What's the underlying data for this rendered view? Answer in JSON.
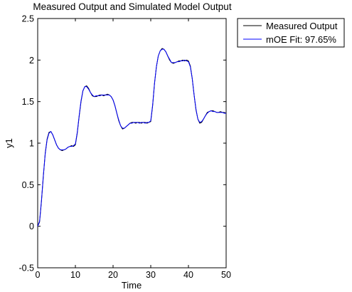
{
  "chart_data": {
    "type": "line",
    "title": "Measured Output and Simulated Model Output",
    "xlabel": "Time",
    "ylabel": "y1",
    "xlim": [
      0,
      50
    ],
    "ylim": [
      -0.5,
      2.5
    ],
    "grid": false,
    "legend_placement": "outside-top-right",
    "x_ticks": [
      "0",
      "10",
      "20",
      "30",
      "40",
      "50"
    ],
    "y_ticks": [
      "-0.5",
      "0",
      "0.5",
      "1",
      "1.5",
      "2",
      "2.5"
    ],
    "series": [
      {
        "name": "Measured Output",
        "color": "#000000",
        "x": [
          0,
          0.5,
          1,
          1.5,
          2,
          2.5,
          3,
          3.5,
          4,
          4.5,
          5,
          5.5,
          6,
          6.5,
          7,
          7.5,
          8,
          8.5,
          9,
          9.5,
          10,
          10.5,
          11,
          11.5,
          12,
          12.5,
          13,
          13.5,
          14,
          14.5,
          15,
          15.5,
          16,
          16.5,
          17,
          17.5,
          18,
          18.5,
          19,
          19.5,
          20,
          20.5,
          21,
          21.5,
          22,
          22.5,
          23,
          23.5,
          24,
          24.5,
          25,
          25.5,
          26,
          26.5,
          27,
          27.5,
          28,
          28.5,
          29,
          29.5,
          30,
          30.5,
          31,
          31.5,
          32,
          32.5,
          33,
          33.5,
          34,
          34.5,
          35,
          35.5,
          36,
          36.5,
          37,
          37.5,
          38,
          38.5,
          39,
          39.5,
          40,
          40.5,
          41,
          41.5,
          42,
          42.5,
          43,
          43.5,
          44,
          44.5,
          45,
          45.5,
          46,
          46.5,
          47,
          47.5,
          48,
          48.5,
          49,
          49.5,
          50
        ],
        "y": [
          0,
          0.05,
          0.3,
          0.6,
          0.88,
          1.05,
          1.13,
          1.14,
          1.1,
          1.04,
          0.98,
          0.94,
          0.92,
          0.91,
          0.92,
          0.93,
          0.95,
          0.96,
          0.97,
          0.96,
          0.98,
          1.12,
          1.32,
          1.5,
          1.63,
          1.68,
          1.69,
          1.66,
          1.61,
          1.57,
          1.56,
          1.56,
          1.57,
          1.58,
          1.58,
          1.57,
          1.58,
          1.59,
          1.58,
          1.56,
          1.52,
          1.45,
          1.36,
          1.27,
          1.21,
          1.17,
          1.18,
          1.2,
          1.22,
          1.24,
          1.25,
          1.25,
          1.24,
          1.25,
          1.25,
          1.24,
          1.25,
          1.25,
          1.24,
          1.25,
          1.26,
          1.45,
          1.72,
          1.92,
          2.05,
          2.11,
          2.14,
          2.13,
          2.1,
          2.05,
          2.0,
          1.97,
          1.96,
          1.97,
          1.98,
          1.99,
          1.99,
          2.0,
          1.99,
          2.0,
          1.99,
          1.93,
          1.78,
          1.58,
          1.4,
          1.29,
          1.24,
          1.25,
          1.29,
          1.33,
          1.37,
          1.38,
          1.39,
          1.39,
          1.38,
          1.37,
          1.37,
          1.38,
          1.37,
          1.37,
          1.36
        ]
      },
      {
        "name": "mOE Fit: 97.65%",
        "color": "#0000ff",
        "x": [
          0,
          0.5,
          1,
          1.5,
          2,
          2.5,
          3,
          3.5,
          4,
          4.5,
          5,
          5.5,
          6,
          6.5,
          7,
          7.5,
          8,
          8.5,
          9,
          9.5,
          10,
          10.5,
          11,
          11.5,
          12,
          12.5,
          13,
          13.5,
          14,
          14.5,
          15,
          15.5,
          16,
          16.5,
          17,
          17.5,
          18,
          18.5,
          19,
          19.5,
          20,
          20.5,
          21,
          21.5,
          22,
          22.5,
          23,
          23.5,
          24,
          24.5,
          25,
          25.5,
          26,
          26.5,
          27,
          27.5,
          28,
          28.5,
          29,
          29.5,
          30,
          30.5,
          31,
          31.5,
          32,
          32.5,
          33,
          33.5,
          34,
          34.5,
          35,
          35.5,
          36,
          36.5,
          37,
          37.5,
          38,
          38.5,
          39,
          39.5,
          40,
          40.5,
          41,
          41.5,
          42,
          42.5,
          43,
          43.5,
          44,
          44.5,
          45,
          45.5,
          46,
          46.5,
          47,
          47.5,
          48,
          48.5,
          49,
          49.5,
          50
        ],
        "y": [
          0,
          0.06,
          0.31,
          0.61,
          0.87,
          1.04,
          1.12,
          1.14,
          1.1,
          1.04,
          0.98,
          0.94,
          0.92,
          0.92,
          0.92,
          0.93,
          0.95,
          0.96,
          0.96,
          0.97,
          0.99,
          1.13,
          1.33,
          1.51,
          1.63,
          1.68,
          1.68,
          1.65,
          1.61,
          1.58,
          1.56,
          1.57,
          1.57,
          1.57,
          1.58,
          1.58,
          1.58,
          1.58,
          1.58,
          1.56,
          1.52,
          1.45,
          1.36,
          1.28,
          1.21,
          1.18,
          1.18,
          1.2,
          1.22,
          1.24,
          1.24,
          1.25,
          1.25,
          1.25,
          1.24,
          1.25,
          1.25,
          1.24,
          1.25,
          1.25,
          1.27,
          1.46,
          1.72,
          1.92,
          2.05,
          2.11,
          2.13,
          2.13,
          2.1,
          2.05,
          2.01,
          1.97,
          1.97,
          1.97,
          1.98,
          1.98,
          1.99,
          1.99,
          2.0,
          1.99,
          1.98,
          1.92,
          1.78,
          1.58,
          1.41,
          1.29,
          1.25,
          1.26,
          1.29,
          1.33,
          1.36,
          1.38,
          1.39,
          1.38,
          1.38,
          1.37,
          1.37,
          1.37,
          1.37,
          1.36,
          1.36
        ]
      }
    ]
  }
}
